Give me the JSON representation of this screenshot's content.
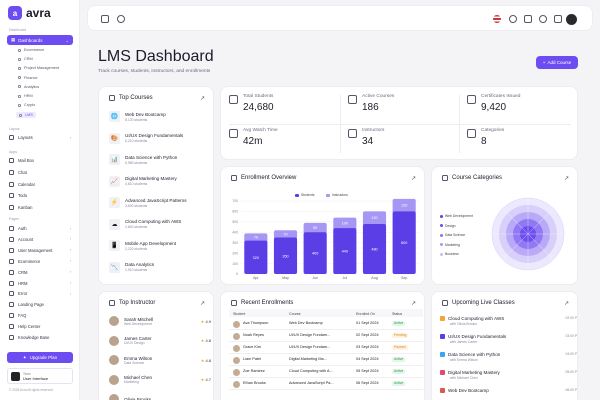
{
  "sidebar": {
    "brand": "avra",
    "section_dashboard": "Dashboard",
    "dashboards": "Dashboards",
    "sub_items": [
      "Ecommerce",
      "CRM",
      "Project Management",
      "Finance",
      "Analytics",
      "HRM",
      "Crypto",
      "LMS"
    ],
    "section_layout": "Layout",
    "layouts": "Layouts",
    "section_apps": "Apps",
    "apps": [
      "Mail Box",
      "Chat",
      "Calendar",
      "Todo",
      "Kanban"
    ],
    "section_pages": "Pages",
    "pages": [
      "Auth",
      "Account",
      "User Management",
      "Ecommerce",
      "CRM",
      "HRM",
      "Error",
      "Landing Page",
      "FAQ",
      "Help Center",
      "Knowledge Base"
    ],
    "upgrade": "Upgrade Plan",
    "team_label": "Team",
    "team_name": "User Interface",
    "copyright": "© 2025 Avra All rights reserved"
  },
  "header": {
    "title": "LMS Dashboard",
    "subtitle": "Track courses, students, instructors, and enrollments",
    "add_course": "Add Course"
  },
  "top_courses": {
    "title": "Top Courses",
    "items": [
      {
        "name": "Web Dev Bootcamp",
        "students": "8,120 students",
        "icon": "🌐"
      },
      {
        "name": "UI/UX Design Fundamentals",
        "students": "6,210 students",
        "icon": "🎨"
      },
      {
        "name": "Data Science with Python",
        "students": "5,980 students",
        "icon": "📊"
      },
      {
        "name": "Digital Marketing Mastery",
        "students": "4,810 students",
        "icon": "📈"
      },
      {
        "name": "Advanced JavaScript Patterns",
        "students": "3,600 students",
        "icon": "⚡"
      },
      {
        "name": "Cloud Computing with AWS",
        "students": "2,840 students",
        "icon": "☁"
      },
      {
        "name": "Mobile App Development",
        "students": "2,220 students",
        "icon": "📱"
      },
      {
        "name": "Data Analytics",
        "students": "1,910 students",
        "icon": "📉"
      }
    ]
  },
  "stats": [
    {
      "label": "Total Students",
      "value": "24,680"
    },
    {
      "label": "Active Courses",
      "value": "186"
    },
    {
      "label": "Certificates Issued",
      "value": "9,420"
    },
    {
      "label": "Avg Watch Time",
      "value": "42m"
    },
    {
      "label": "Instructors",
      "value": "34"
    },
    {
      "label": "Categories",
      "value": "8"
    }
  ],
  "enrollment": {
    "title": "Enrollment Overview",
    "legend": [
      "Students",
      "Instructors"
    ]
  },
  "chart_data": {
    "type": "bar",
    "categories": [
      "Apr",
      "May",
      "Jun",
      "Jul",
      "Aug",
      "Sep"
    ],
    "ylim": [
      0,
      700
    ],
    "yticks": [
      "0",
      "100",
      "200",
      "300",
      "400",
      "500",
      "600",
      "700"
    ],
    "series": [
      {
        "name": "Students",
        "values": [
          320,
          350,
          400,
          440,
          480,
          600
        ]
      },
      {
        "name": "Instructors",
        "values": [
          70,
          70,
          90,
          100,
          120,
          120
        ]
      }
    ],
    "colors": [
      "#5b3ee6",
      "#a797f5"
    ]
  },
  "categories": {
    "title": "Course Categories",
    "legend": [
      "Web Development",
      "Design",
      "Data Science",
      "Marketing",
      "Business"
    ],
    "colors": [
      "#5b3ee6",
      "#6d4df2",
      "#8a72f5",
      "#a797f5",
      "#c8bdfa"
    ]
  },
  "top_instructor": {
    "title": "Top Instructor",
    "items": [
      {
        "name": "Sarah Mitchell",
        "role": "Web Development",
        "rating": "4.9"
      },
      {
        "name": "James Carter",
        "role": "UI/UX Design",
        "rating": "4.8"
      },
      {
        "name": "Emma Wilson",
        "role": "Data Science",
        "rating": "4.8"
      },
      {
        "name": "Michael Chen",
        "role": "Marketing",
        "rating": "4.7"
      },
      {
        "name": "Olivia Brooks",
        "role": "",
        "rating": ""
      }
    ]
  },
  "enrollments": {
    "title": "Recent Enrollments",
    "columns": [
      "Student",
      "Course",
      "Enrolled On",
      "Status"
    ],
    "rows": [
      {
        "student": "Ava Thompson",
        "course": "Web Dev Bootcamp",
        "date": "01 Sept 2024",
        "status": "Active"
      },
      {
        "student": "Noah Reyes",
        "course": "UI/UX Design Fundam...",
        "date": "02 Sept 2024",
        "status": "Pending"
      },
      {
        "student": "Grace Kim",
        "course": "UI/UX Design Fundam...",
        "date": "03 Sept 2024",
        "status": "Paused"
      },
      {
        "student": "Liam Patel",
        "course": "Digital Marketing Ma...",
        "date": "04 Sept 2024",
        "status": "Active"
      },
      {
        "student": "Zoe Ramirez",
        "course": "Cloud Computing with A...",
        "date": "05 Sept 2024",
        "status": "Active"
      },
      {
        "student": "Ethan Brooks",
        "course": "Advanced JavaScript Pa...",
        "date": "06 Sept 2024",
        "status": "Active"
      }
    ]
  },
  "live_classes": {
    "title": "Upcoming Live Classes",
    "items": [
      {
        "name": "Cloud Computing with AWS",
        "by": "with Olivia Brooks",
        "time": "02:00 PM",
        "color": "#f2a53a"
      },
      {
        "name": "UI/UX Design Fundamentals",
        "by": "with James Carter",
        "time": "03:00 PM",
        "color": "#5b3ee6"
      },
      {
        "name": "Data Science with Python",
        "by": "with Emma Wilson",
        "time": "04:00 PM",
        "color": "#3aa6f2"
      },
      {
        "name": "Digital Marketing Mastery",
        "by": "with Michael Chen",
        "time": "05:00 PM",
        "color": "#e24b6a"
      },
      {
        "name": "Web Dev Bootcamp",
        "by": "",
        "time": "06:00 PM",
        "color": "#e2574b"
      }
    ]
  }
}
